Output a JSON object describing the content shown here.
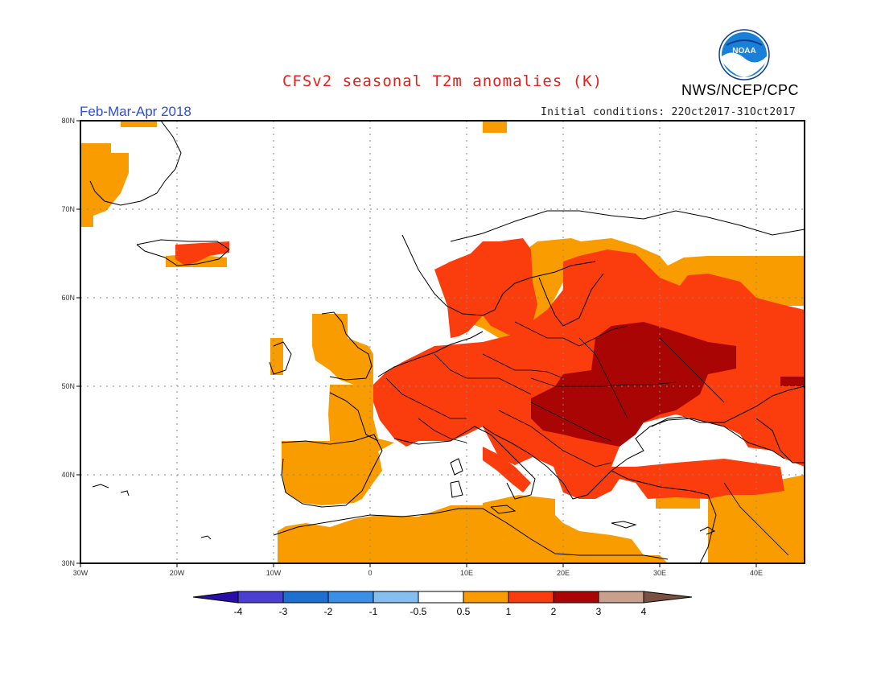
{
  "header": {
    "title": "CFSv2 seasonal T2m anomalies (K)",
    "period": "Feb-Mar-Apr 2018",
    "initial_conditions": "Initial conditions: 22Oct2017-31Oct2017",
    "agency": "NWS/NCEP/CPC",
    "logo_text": "NOAA"
  },
  "map": {
    "lon_labels": [
      "30W",
      "20W",
      "10W",
      "0",
      "10E",
      "20E",
      "30E",
      "40E"
    ],
    "lat_labels": [
      "80N",
      "70N",
      "60N",
      "50N",
      "40N",
      "30N"
    ],
    "lon_range": [
      -30,
      45
    ],
    "lat_range": [
      30,
      80
    ]
  },
  "colorbar": {
    "labels": [
      "-4",
      "-3",
      "-2",
      "-1",
      "-0.5",
      "0.5",
      "1",
      "2",
      "3",
      "4"
    ],
    "colors": [
      "#2a0ea8",
      "#4a3fd0",
      "#1f6fd0",
      "#3c8fe6",
      "#85bff0",
      "#ffffff",
      "#f99c00",
      "#fb3d0d",
      "#aa0505",
      "#c8a08c",
      "#7a5040"
    ]
  }
}
